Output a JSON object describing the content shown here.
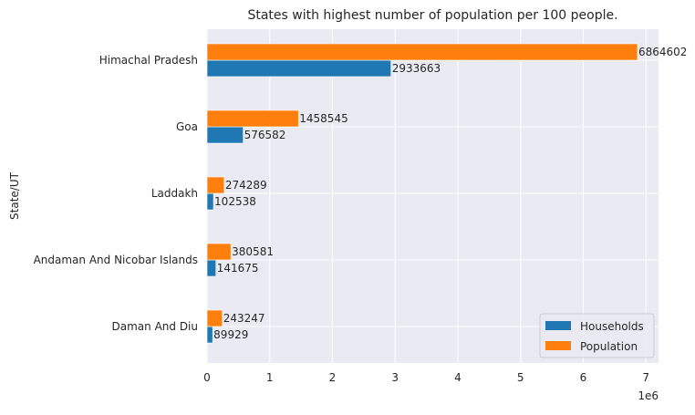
{
  "chart_data": {
    "type": "bar",
    "orientation": "horizontal",
    "title": "States with highest number of population per 100 people.",
    "xlabel": "",
    "ylabel": "State/UT",
    "x_offset_label": "1e6",
    "xlim": [
      0,
      7200000
    ],
    "xticks": [
      0,
      1000000,
      2000000,
      3000000,
      4000000,
      5000000,
      6000000,
      7000000
    ],
    "xtick_labels": [
      "0",
      "1",
      "2",
      "3",
      "4",
      "5",
      "6",
      "7"
    ],
    "categories": [
      "Himachal Pradesh",
      "Goa",
      "Laddakh",
      "Andaman And Nicobar Islands",
      "Daman And Diu"
    ],
    "series": [
      {
        "name": "Households",
        "color": "#1f77b4",
        "values": [
          2933663,
          576582,
          102538,
          141675,
          89929
        ]
      },
      {
        "name": "Population",
        "color": "#ff7f0e",
        "values": [
          6864602,
          1458545,
          274289,
          380581,
          243247
        ]
      }
    ],
    "grid": true,
    "legend_position": "lower-right",
    "background": "#eaeaf2"
  }
}
